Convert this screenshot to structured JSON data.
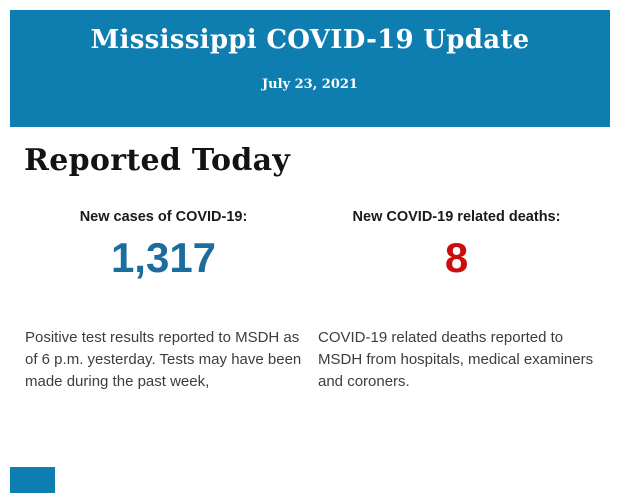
{
  "header": {
    "title": "Mississippi COVID-19 Update",
    "date": "July 23, 2021",
    "background_color": "#0e7eb1",
    "text_color": "#ffffff"
  },
  "main": {
    "section_title": "Reported Today",
    "stats": [
      {
        "label": "New cases of COVID-19:",
        "value": "1,317",
        "value_color": "#1b6d9e",
        "description": "Positive test results reported to MSDH as of 6 p.m. yesterday. Tests may have been made during the past week,"
      },
      {
        "label": "New COVID-19 related deaths:",
        "value": "8",
        "value_color": "#cc0d0d",
        "description": "COVID-19 related deaths reported to MSDH from hospitals, medical examiners and coroners."
      }
    ]
  },
  "footer": {
    "next_section_fragment_color": "#0e7eb1"
  },
  "colors": {
    "banner_blue": "#0e7eb1",
    "cases_blue": "#1b6d9e",
    "deaths_red": "#cc0d0d",
    "body_text_gray": "#3d3d3d"
  }
}
